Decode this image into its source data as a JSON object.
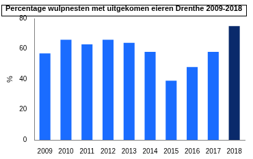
{
  "chart_data": {
    "type": "bar",
    "title": "Percentage wulpnesten met uitgekomen eieren Drenthe 2009-2018",
    "y_label": "%",
    "categories": [
      "2009",
      "2010",
      "2011",
      "2012",
      "2013",
      "2014",
      "2015",
      "2016",
      "2017",
      "2018"
    ],
    "values": [
      57,
      66,
      63,
      66,
      64,
      58,
      39,
      48,
      58,
      75
    ],
    "colors": [
      "#1a6cff",
      "#1a6cff",
      "#1a6cff",
      "#1a6cff",
      "#1a6cff",
      "#1a6cff",
      "#1a6cff",
      "#1a6cff",
      "#1a6cff",
      "#0a2a6b"
    ],
    "ylim": [
      0,
      80
    ],
    "yticks": [
      0,
      20,
      40,
      60,
      80
    ],
    "grid": false
  }
}
